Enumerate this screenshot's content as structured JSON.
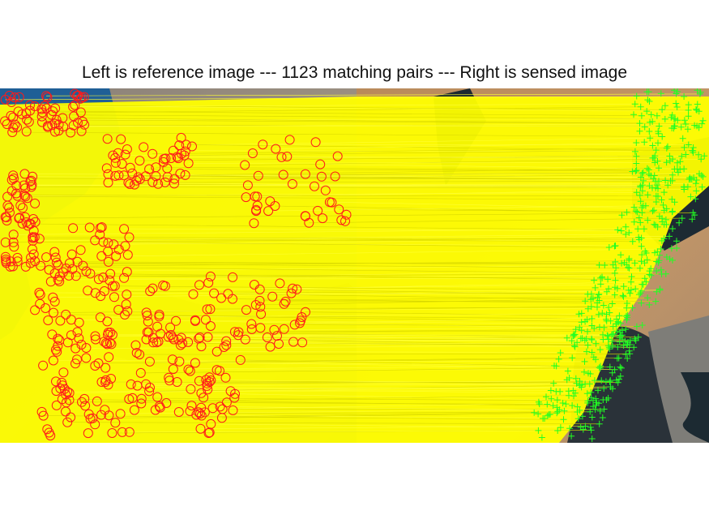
{
  "figure": {
    "title": "Left is reference image --- 1123 matching pairs --- Right is sensed image"
  },
  "matches": {
    "count": 1123,
    "reference_marker": "red-circle",
    "sensed_marker": "green-plus",
    "line_color": "#ffff00",
    "reference_marker_color": "#ff1a1a",
    "sensed_marker_color": "#22ff22"
  },
  "images": {
    "reference": "satellite-image-reference",
    "sensed": "satellite-image-sensed"
  }
}
